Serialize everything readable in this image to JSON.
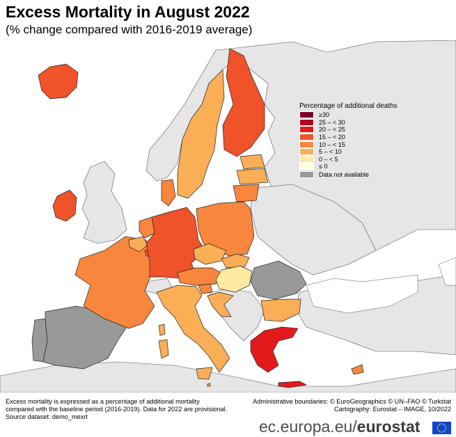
{
  "header": {
    "title": "Excess Mortality in August 2022",
    "subtitle": "(% change compared with 2016-2019 average)"
  },
  "legend": {
    "title": "Percentage of additional deaths",
    "items": [
      {
        "label": "≥30",
        "color": "#7a0026"
      },
      {
        "label": "25 – < 30",
        "color": "#b0001e"
      },
      {
        "label": "20 – < 25",
        "color": "#e31a1c"
      },
      {
        "label": "15 – < 20",
        "color": "#f0522a"
      },
      {
        "label": "10 – < 15",
        "color": "#f8863d"
      },
      {
        "label": "5 – < 10",
        "color": "#faae56"
      },
      {
        "label": "0 – < 5",
        "color": "#fde9a0"
      },
      {
        "label": "≤ 0",
        "color": "#ffffe0"
      },
      {
        "label": "Data not available",
        "color": "#999999"
      }
    ]
  },
  "footnote": {
    "line1": "Excess mortality is expressed as a percentage of additional mortality",
    "line2": "compared with the baseline period (2016-2019). Data for 2022 are provisional.",
    "line3": "Source dataset: demo_mexrt"
  },
  "credits": {
    "line1": "Administrative boundaries: © EuroGeographics © UN–FAO © Turkstat",
    "line2": "Cartography: Eurostat – IMAGE, 10/2022"
  },
  "brand": {
    "site": "ec.europa.eu/",
    "name": "eurostat"
  },
  "colors": {
    "sea": "#ffffff",
    "non_eu_land": "#e6e6e6",
    "border": "#222222",
    "brand_blue": "#0e47cb",
    "flag_star": "#ffde00"
  }
}
